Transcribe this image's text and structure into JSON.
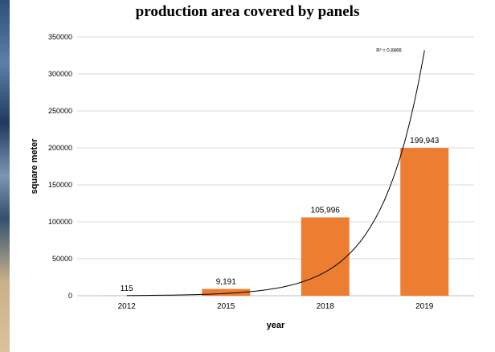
{
  "chart_data": {
    "type": "bar",
    "title": "production area covered by panels",
    "xlabel": "year",
    "ylabel": "square meter",
    "categories": [
      "2012",
      "2015",
      "2018",
      "2019"
    ],
    "values": [
      115,
      9191,
      105996,
      199943
    ],
    "data_labels": [
      "115",
      "9,191",
      "105,996",
      "199,943"
    ],
    "ylim": [
      0,
      350000
    ],
    "y_ticks": [
      0,
      50000,
      100000,
      150000,
      200000,
      250000,
      300000,
      350000
    ],
    "y_tick_labels": [
      "0",
      "50000",
      "100000",
      "150000",
      "200000",
      "250000",
      "300000",
      "350000"
    ],
    "grid": "horizontal",
    "bar_color": "#ed7d31",
    "trendline": {
      "type": "exponential",
      "label": "R² = 0.8866",
      "end_value": 332000
    }
  }
}
